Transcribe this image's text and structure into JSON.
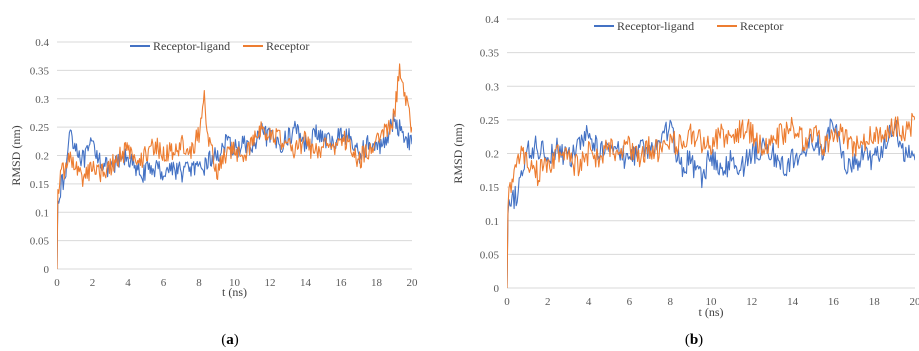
{
  "panels": [
    {
      "caption_open": "(",
      "caption_letter": "a",
      "caption_close": ")",
      "chart_data": {
        "type": "line",
        "xlabel": "t (ns)",
        "ylabel": "RMSD (nm)",
        "xlim": [
          0,
          20
        ],
        "ylim": [
          0,
          0.4
        ],
        "xticks": [
          0,
          2,
          4,
          6,
          8,
          10,
          12,
          14,
          16,
          18,
          20
        ],
        "yticks": [
          0,
          0.05,
          0.1,
          0.15,
          0.2,
          0.25,
          0.3,
          0.35,
          0.4
        ],
        "ytick_labels": [
          "0",
          "0.05",
          "0.1",
          "0.15",
          "0.2",
          "0.25",
          "0.3",
          "0.35",
          "0.4"
        ],
        "grid": "horizontal",
        "legend": "top",
        "series": [
          {
            "name": "Receptor-ligand",
            "color": "#4472C4",
            "x": [
              0,
              0.05,
              0.15,
              0.3,
              0.5,
              0.7,
              1,
              1.5,
              2,
              2.5,
              3,
              3.5,
              4,
              4.5,
              5,
              5.5,
              6,
              6.5,
              7,
              7.5,
              8,
              8.5,
              9,
              9.5,
              10,
              10.5,
              11,
              11.5,
              12,
              12.5,
              13,
              13.5,
              14,
              14.5,
              15,
              15.5,
              16,
              16.5,
              17,
              17.5,
              18,
              18.5,
              19,
              19.5,
              20
            ],
            "y": [
              0.0,
              0.12,
              0.14,
              0.15,
              0.16,
              0.25,
              0.22,
              0.19,
              0.22,
              0.19,
              0.17,
              0.19,
              0.2,
              0.17,
              0.17,
              0.18,
              0.17,
              0.18,
              0.17,
              0.18,
              0.17,
              0.19,
              0.2,
              0.22,
              0.21,
              0.22,
              0.21,
              0.24,
              0.23,
              0.22,
              0.23,
              0.25,
              0.22,
              0.24,
              0.23,
              0.22,
              0.24,
              0.23,
              0.2,
              0.22,
              0.21,
              0.23,
              0.26,
              0.24,
              0.22
            ]
          },
          {
            "name": "Receptor",
            "color": "#ED7D31",
            "x": [
              0,
              0.05,
              0.15,
              0.3,
              0.5,
              0.7,
              1,
              1.5,
              2,
              2.5,
              3,
              3.5,
              4,
              4.5,
              5,
              5.5,
              6,
              6.5,
              7,
              7.5,
              8,
              8.3,
              8.6,
              9,
              9.5,
              10,
              10.5,
              11,
              11.5,
              12,
              12.5,
              13,
              13.5,
              14,
              14.5,
              15,
              15.5,
              16,
              16.5,
              17,
              17.5,
              18,
              18.5,
              19,
              19.3,
              19.6,
              20
            ],
            "y": [
              0.0,
              0.14,
              0.16,
              0.17,
              0.18,
              0.2,
              0.18,
              0.16,
              0.18,
              0.17,
              0.18,
              0.2,
              0.21,
              0.19,
              0.2,
              0.22,
              0.2,
              0.21,
              0.22,
              0.2,
              0.24,
              0.3,
              0.22,
              0.17,
              0.2,
              0.21,
              0.2,
              0.22,
              0.25,
              0.24,
              0.23,
              0.22,
              0.21,
              0.23,
              0.2,
              0.22,
              0.21,
              0.23,
              0.22,
              0.19,
              0.21,
              0.22,
              0.24,
              0.27,
              0.35,
              0.3,
              0.25
            ]
          }
        ]
      }
    },
    {
      "caption_open": "(",
      "caption_letter": "b",
      "caption_close": ")",
      "chart_data": {
        "type": "line",
        "xlabel": "t (ns)",
        "ylabel": "RMSD (nm)",
        "xlim": [
          0,
          20
        ],
        "ylim": [
          0,
          0.4
        ],
        "xticks": [
          0,
          2,
          4,
          6,
          8,
          10,
          12,
          14,
          16,
          18,
          20
        ],
        "yticks": [
          0,
          0.05,
          0.1,
          0.15,
          0.2,
          0.25,
          0.3,
          0.35,
          0.4
        ],
        "ytick_labels": [
          "0",
          "0.05",
          "0.1",
          "0.15",
          "0.2",
          "0.25",
          "0.3",
          "0.35",
          "0.4"
        ],
        "grid": "horizontal",
        "legend": "top",
        "series": [
          {
            "name": "Receptor-ligand",
            "color": "#4472C4",
            "x": [
              0,
              0.05,
              0.15,
              0.3,
              0.5,
              0.7,
              1,
              1.5,
              2,
              2.5,
              3,
              3.5,
              4,
              4.5,
              5,
              5.5,
              6,
              6.5,
              7,
              7.5,
              8,
              8.5,
              9,
              9.5,
              10,
              10.5,
              11,
              11.5,
              12,
              12.5,
              13,
              13.5,
              14,
              14.5,
              15,
              15.5,
              16,
              16.5,
              17,
              17.5,
              18,
              18.5,
              19,
              19.5,
              20
            ],
            "y": [
              0.0,
              0.11,
              0.12,
              0.13,
              0.14,
              0.17,
              0.2,
              0.21,
              0.2,
              0.21,
              0.19,
              0.21,
              0.23,
              0.2,
              0.22,
              0.2,
              0.19,
              0.21,
              0.2,
              0.22,
              0.24,
              0.18,
              0.19,
              0.16,
              0.2,
              0.17,
              0.19,
              0.18,
              0.2,
              0.21,
              0.2,
              0.18,
              0.19,
              0.2,
              0.22,
              0.2,
              0.25,
              0.19,
              0.18,
              0.2,
              0.19,
              0.21,
              0.24,
              0.2,
              0.19
            ]
          },
          {
            "name": "Receptor",
            "color": "#ED7D31",
            "x": [
              0,
              0.05,
              0.15,
              0.3,
              0.5,
              0.7,
              1,
              1.5,
              2,
              2.5,
              3,
              3.5,
              4,
              4.5,
              5,
              5.5,
              6,
              6.5,
              7,
              7.5,
              8,
              8.5,
              9,
              9.5,
              10,
              10.5,
              11,
              11.5,
              12,
              12.5,
              13,
              13.5,
              14,
              14.5,
              15,
              15.5,
              16,
              16.5,
              17,
              17.5,
              18,
              18.5,
              19,
              19.5,
              20
            ],
            "y": [
              0.0,
              0.12,
              0.15,
              0.17,
              0.18,
              0.2,
              0.19,
              0.17,
              0.18,
              0.2,
              0.19,
              0.18,
              0.2,
              0.19,
              0.21,
              0.2,
              0.21,
              0.19,
              0.21,
              0.2,
              0.22,
              0.21,
              0.23,
              0.22,
              0.21,
              0.23,
              0.22,
              0.24,
              0.23,
              0.21,
              0.22,
              0.23,
              0.24,
              0.22,
              0.23,
              0.21,
              0.22,
              0.23,
              0.21,
              0.22,
              0.23,
              0.22,
              0.24,
              0.23,
              0.25
            ]
          }
        ]
      }
    }
  ]
}
